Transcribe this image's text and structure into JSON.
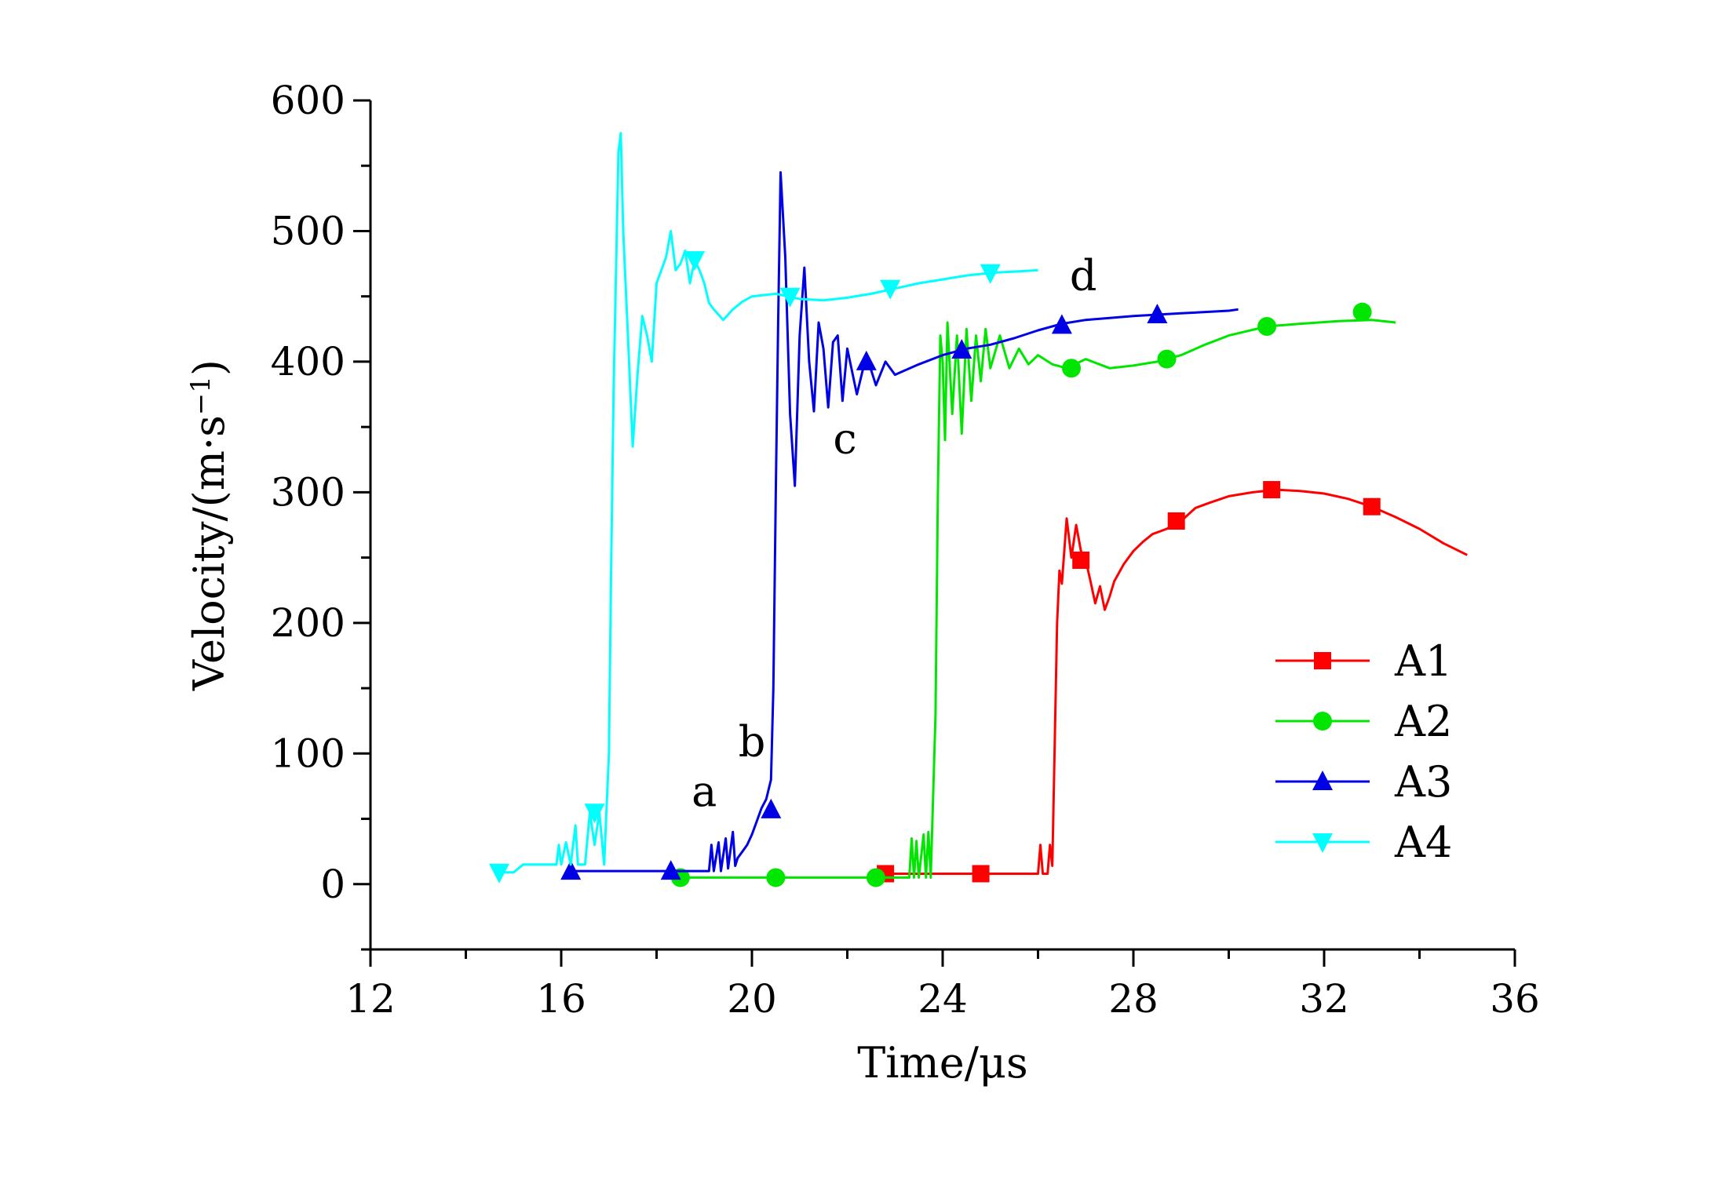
{
  "chart_data": {
    "type": "line",
    "title": "",
    "xlabel": "Time/μs",
    "ylabel": "Velocity/(m·s",
    "ylabel_sup": "−1",
    "ylabel_close": ")",
    "xlim": [
      12,
      36
    ],
    "ylim": [
      -50,
      600
    ],
    "xticks": [
      12,
      16,
      20,
      24,
      28,
      32,
      36
    ],
    "yticks": [
      0,
      100,
      200,
      300,
      400,
      500,
      600
    ],
    "grid": false,
    "legend_position": "right",
    "series": [
      {
        "name": "A1",
        "color": "#ff0000",
        "marker": "square",
        "points": [
          [
            22.8,
            8
          ],
          [
            24,
            8
          ],
          [
            25,
            8
          ],
          [
            26,
            8
          ],
          [
            26.05,
            30
          ],
          [
            26.1,
            8
          ],
          [
            26.2,
            8
          ],
          [
            26.25,
            30
          ],
          [
            26.3,
            14
          ],
          [
            26.4,
            200
          ],
          [
            26.45,
            240
          ],
          [
            26.5,
            230
          ],
          [
            26.6,
            280
          ],
          [
            26.7,
            250
          ],
          [
            26.8,
            275
          ],
          [
            26.9,
            255
          ],
          [
            27.0,
            248
          ],
          [
            27.1,
            232
          ],
          [
            27.2,
            215
          ],
          [
            27.3,
            228
          ],
          [
            27.4,
            210
          ],
          [
            27.5,
            220
          ],
          [
            27.6,
            232
          ],
          [
            27.8,
            245
          ],
          [
            28.0,
            255
          ],
          [
            28.2,
            262
          ],
          [
            28.4,
            268
          ],
          [
            28.7,
            272
          ],
          [
            29.0,
            278
          ],
          [
            29.3,
            288
          ],
          [
            29.6,
            292
          ],
          [
            30.0,
            297
          ],
          [
            30.5,
            300
          ],
          [
            31.0,
            302
          ],
          [
            31.5,
            301
          ],
          [
            32.0,
            299
          ],
          [
            32.5,
            295
          ],
          [
            33.0,
            289
          ],
          [
            33.5,
            281
          ],
          [
            34.0,
            272
          ],
          [
            34.5,
            261
          ],
          [
            35.0,
            252
          ]
        ],
        "markers": [
          [
            22.8,
            8
          ],
          [
            24.8,
            8
          ],
          [
            26.9,
            248
          ],
          [
            28.9,
            278
          ],
          [
            30.9,
            302
          ],
          [
            33.0,
            289
          ]
        ]
      },
      {
        "name": "A2",
        "color": "#00e600",
        "marker": "circle",
        "points": [
          [
            18.5,
            5
          ],
          [
            19.5,
            5
          ],
          [
            20.5,
            5
          ],
          [
            21.5,
            5
          ],
          [
            22.6,
            5
          ],
          [
            23.3,
            5
          ],
          [
            23.35,
            35
          ],
          [
            23.4,
            5
          ],
          [
            23.45,
            33
          ],
          [
            23.5,
            5
          ],
          [
            23.6,
            38
          ],
          [
            23.65,
            5
          ],
          [
            23.7,
            40
          ],
          [
            23.75,
            5
          ],
          [
            23.85,
            130
          ],
          [
            23.9,
            300
          ],
          [
            23.95,
            420
          ],
          [
            24.0,
            400
          ],
          [
            24.05,
            340
          ],
          [
            24.1,
            430
          ],
          [
            24.2,
            360
          ],
          [
            24.3,
            420
          ],
          [
            24.4,
            345
          ],
          [
            24.5,
            425
          ],
          [
            24.6,
            370
          ],
          [
            24.7,
            420
          ],
          [
            24.8,
            385
          ],
          [
            24.9,
            425
          ],
          [
            25.0,
            395
          ],
          [
            25.2,
            420
          ],
          [
            25.4,
            395
          ],
          [
            25.6,
            410
          ],
          [
            25.8,
            398
          ],
          [
            26.0,
            405
          ],
          [
            26.3,
            398
          ],
          [
            26.6,
            395
          ],
          [
            27.0,
            402
          ],
          [
            27.5,
            395
          ],
          [
            28.0,
            397
          ],
          [
            28.5,
            400
          ],
          [
            29.0,
            405
          ],
          [
            29.5,
            413
          ],
          [
            30.0,
            420
          ],
          [
            30.8,
            427
          ],
          [
            31.5,
            429
          ],
          [
            32.3,
            431
          ],
          [
            33.0,
            432
          ],
          [
            33.5,
            430
          ]
        ],
        "markers": [
          [
            18.5,
            5
          ],
          [
            20.5,
            5
          ],
          [
            22.6,
            5
          ],
          [
            26.7,
            395
          ],
          [
            28.7,
            402
          ],
          [
            30.8,
            427
          ],
          [
            32.8,
            438
          ]
        ]
      },
      {
        "name": "A3",
        "color": "#0000e6",
        "marker": "triangle-up",
        "points": [
          [
            16.2,
            10
          ],
          [
            17,
            10
          ],
          [
            18,
            10
          ],
          [
            18.8,
            10
          ],
          [
            19.1,
            10
          ],
          [
            19.15,
            30
          ],
          [
            19.2,
            10
          ],
          [
            19.3,
            32
          ],
          [
            19.35,
            10
          ],
          [
            19.45,
            35
          ],
          [
            19.5,
            12
          ],
          [
            19.6,
            40
          ],
          [
            19.65,
            14
          ],
          [
            19.7,
            20
          ],
          [
            19.8,
            25
          ],
          [
            19.9,
            30
          ],
          [
            20.0,
            38
          ],
          [
            20.1,
            48
          ],
          [
            20.2,
            58
          ],
          [
            20.3,
            65
          ],
          [
            20.4,
            80
          ],
          [
            20.45,
            150
          ],
          [
            20.5,
            300
          ],
          [
            20.55,
            430
          ],
          [
            20.6,
            545
          ],
          [
            20.7,
            480
          ],
          [
            20.8,
            360
          ],
          [
            20.9,
            305
          ],
          [
            21.0,
            420
          ],
          [
            21.1,
            472
          ],
          [
            21.2,
            400
          ],
          [
            21.3,
            362
          ],
          [
            21.4,
            430
          ],
          [
            21.5,
            410
          ],
          [
            21.6,
            365
          ],
          [
            21.7,
            415
          ],
          [
            21.8,
            420
          ],
          [
            21.9,
            370
          ],
          [
            22.0,
            410
          ],
          [
            22.2,
            375
          ],
          [
            22.4,
            405
          ],
          [
            22.6,
            382
          ],
          [
            22.8,
            400
          ],
          [
            23.0,
            390
          ],
          [
            23.5,
            398
          ],
          [
            24.0,
            405
          ],
          [
            24.5,
            410
          ],
          [
            25.0,
            413
          ],
          [
            25.5,
            418
          ],
          [
            26.0,
            424
          ],
          [
            26.5,
            429
          ],
          [
            27.0,
            432
          ],
          [
            28.0,
            435
          ],
          [
            29.0,
            437
          ],
          [
            30.0,
            439
          ],
          [
            30.2,
            440
          ]
        ],
        "markers": [
          [
            16.2,
            10
          ],
          [
            18.3,
            10
          ],
          [
            20.4,
            57
          ],
          [
            22.4,
            400
          ],
          [
            24.4,
            409
          ],
          [
            26.5,
            428
          ],
          [
            28.5,
            436
          ]
        ]
      },
      {
        "name": "A4",
        "color": "#00ffff",
        "marker": "triangle-down",
        "points": [
          [
            14.7,
            9
          ],
          [
            15.0,
            9
          ],
          [
            15.2,
            15
          ],
          [
            15.5,
            15
          ],
          [
            15.9,
            15
          ],
          [
            15.95,
            30
          ],
          [
            16.0,
            15
          ],
          [
            16.1,
            32
          ],
          [
            16.2,
            15
          ],
          [
            16.3,
            45
          ],
          [
            16.35,
            15
          ],
          [
            16.5,
            15
          ],
          [
            16.6,
            55
          ],
          [
            16.7,
            30
          ],
          [
            16.8,
            55
          ],
          [
            16.9,
            15
          ],
          [
            17.0,
            100
          ],
          [
            17.05,
            250
          ],
          [
            17.1,
            380
          ],
          [
            17.2,
            560
          ],
          [
            17.25,
            575
          ],
          [
            17.3,
            500
          ],
          [
            17.4,
            420
          ],
          [
            17.5,
            335
          ],
          [
            17.6,
            390
          ],
          [
            17.7,
            435
          ],
          [
            17.8,
            420
          ],
          [
            17.9,
            400
          ],
          [
            18.0,
            460
          ],
          [
            18.2,
            480
          ],
          [
            18.3,
            500
          ],
          [
            18.4,
            470
          ],
          [
            18.5,
            475
          ],
          [
            18.6,
            485
          ],
          [
            18.7,
            460
          ],
          [
            18.8,
            478
          ],
          [
            18.9,
            470
          ],
          [
            19.0,
            460
          ],
          [
            19.1,
            445
          ],
          [
            19.2,
            440
          ],
          [
            19.4,
            432
          ],
          [
            19.6,
            440
          ],
          [
            19.8,
            446
          ],
          [
            20.0,
            450
          ],
          [
            20.5,
            452
          ],
          [
            21.0,
            448
          ],
          [
            21.5,
            447
          ],
          [
            22.0,
            449
          ],
          [
            22.5,
            452
          ],
          [
            23.0,
            456
          ],
          [
            23.5,
            460
          ],
          [
            24.0,
            463
          ],
          [
            24.5,
            466
          ],
          [
            25.0,
            468
          ],
          [
            25.5,
            469
          ],
          [
            26.0,
            470
          ]
        ],
        "markers": [
          [
            14.7,
            9
          ],
          [
            16.7,
            55
          ],
          [
            18.8,
            478
          ],
          [
            20.8,
            450
          ],
          [
            22.9,
            456
          ],
          [
            25.0,
            468
          ]
        ]
      }
    ],
    "annotations": [
      {
        "text": "a",
        "x": 19.0,
        "y": 60
      },
      {
        "text": "b",
        "x": 20.0,
        "y": 98
      },
      {
        "text": "c",
        "x": 21.95,
        "y": 330
      },
      {
        "text": "d",
        "x": 26.95,
        "y": 455
      }
    ]
  }
}
